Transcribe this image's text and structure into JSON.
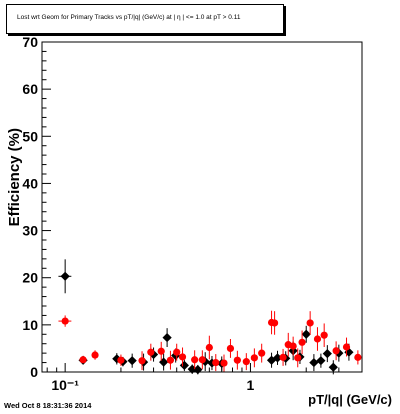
{
  "timestamp": "Wed Oct  8 18:31:36 2014",
  "chart_data": {
    "type": "scatter",
    "title": "Lost wrt Geom for Primary Tracks vs pT/|q| (GeV/c) at | η | <= 1.0 at pT > 0.11",
    "xlabel": "pT/|q| (GeV/c)",
    "ylabel": "Efficiency (%)",
    "xscale": "log",
    "xlim": [
      0.075,
      4.0
    ],
    "ylim": [
      0,
      70
    ],
    "yticks": [
      0,
      10,
      20,
      30,
      40,
      50,
      60,
      70
    ],
    "xtick_labels": [
      {
        "value": 0.1,
        "label": "10⁻¹"
      },
      {
        "value": 1,
        "label": "1"
      }
    ],
    "grid": false,
    "legend": "none",
    "series": [
      {
        "color": "#000000",
        "marker": "diamond",
        "points": [
          {
            "x": 0.1,
            "y": 20.3,
            "yerr": 3.6,
            "xerr": 0.008
          },
          {
            "x": 0.125,
            "y": 2.5,
            "yerr": 0.8
          },
          {
            "x": 0.19,
            "y": 2.8,
            "yerr": 1.2
          },
          {
            "x": 0.205,
            "y": 2.2,
            "yerr": 1.0
          },
          {
            "x": 0.23,
            "y": 2.4,
            "yerr": 1.5
          },
          {
            "x": 0.265,
            "y": 2.1,
            "yerr": 1.8
          },
          {
            "x": 0.3,
            "y": 3.7,
            "yerr": 1.5
          },
          {
            "x": 0.34,
            "y": 2.1,
            "yerr": 1.8
          },
          {
            "x": 0.355,
            "y": 7.3,
            "yerr": 2.0
          },
          {
            "x": 0.395,
            "y": 3.5,
            "yerr": 1.5
          },
          {
            "x": 0.44,
            "y": 1.4,
            "yerr": 1.2
          },
          {
            "x": 0.485,
            "y": 0.6,
            "yerr": 1.0
          },
          {
            "x": 0.52,
            "y": 0.5,
            "yerr": 1.0
          },
          {
            "x": 0.57,
            "y": 2.2,
            "yerr": 2.0
          },
          {
            "x": 0.62,
            "y": 1.9,
            "yerr": 1.5
          },
          {
            "x": 0.7,
            "y": 1.8,
            "yerr": 1.5
          },
          {
            "x": 1.3,
            "y": 2.5,
            "yerr": 1.6
          },
          {
            "x": 1.4,
            "y": 3.0,
            "yerr": 1.5
          },
          {
            "x": 1.55,
            "y": 2.9,
            "yerr": 1.5
          },
          {
            "x": 1.7,
            "y": 4.5,
            "yerr": 2.0
          },
          {
            "x": 1.85,
            "y": 3.2,
            "yerr": 1.5
          },
          {
            "x": 2.0,
            "y": 8.0,
            "yerr": 1.8
          },
          {
            "x": 2.2,
            "y": 2.0,
            "yerr": 1.8
          },
          {
            "x": 2.4,
            "y": 2.4,
            "yerr": 1.5
          },
          {
            "x": 2.6,
            "y": 3.9,
            "yerr": 1.8
          },
          {
            "x": 2.8,
            "y": 1.0,
            "yerr": 1.5
          },
          {
            "x": 3.0,
            "y": 4.0,
            "yerr": 1.8
          },
          {
            "x": 3.4,
            "y": 4.2,
            "yerr": 1.8
          }
        ]
      },
      {
        "color": "#ff0000",
        "marker": "circle",
        "points": [
          {
            "x": 0.1,
            "y": 10.8,
            "yerr": 1.2,
            "xerr": 0.008
          },
          {
            "x": 0.125,
            "y": 2.6,
            "yerr": 0.6
          },
          {
            "x": 0.145,
            "y": 3.6,
            "yerr": 1.0
          },
          {
            "x": 0.2,
            "y": 2.5,
            "yerr": 1.2
          },
          {
            "x": 0.26,
            "y": 2.4,
            "yerr": 2.0
          },
          {
            "x": 0.29,
            "y": 4.2,
            "yerr": 1.8
          },
          {
            "x": 0.33,
            "y": 4.4,
            "yerr": 2.0
          },
          {
            "x": 0.37,
            "y": 2.5,
            "yerr": 2.0
          },
          {
            "x": 0.4,
            "y": 4.2,
            "yerr": 1.8
          },
          {
            "x": 0.43,
            "y": 3.2,
            "yerr": 2.0
          },
          {
            "x": 0.5,
            "y": 2.6,
            "yerr": 2.0
          },
          {
            "x": 0.55,
            "y": 2.6,
            "yerr": 2.0
          },
          {
            "x": 0.6,
            "y": 5.2,
            "yerr": 2.5
          },
          {
            "x": 0.65,
            "y": 2.0,
            "yerr": 1.8
          },
          {
            "x": 0.72,
            "y": 1.9,
            "yerr": 1.8
          },
          {
            "x": 0.78,
            "y": 5.0,
            "yerr": 2.0
          },
          {
            "x": 0.85,
            "y": 2.5,
            "yerr": 2.0
          },
          {
            "x": 0.95,
            "y": 2.2,
            "yerr": 1.8
          },
          {
            "x": 1.05,
            "y": 3.0,
            "yerr": 2.0
          },
          {
            "x": 1.15,
            "y": 4.0,
            "yerr": 2.0
          },
          {
            "x": 1.3,
            "y": 10.5,
            "yerr": 2.5
          },
          {
            "x": 1.35,
            "y": 10.4,
            "yerr": 2.5
          },
          {
            "x": 1.5,
            "y": 3.1,
            "yerr": 1.8
          },
          {
            "x": 1.6,
            "y": 5.8,
            "yerr": 2.5
          },
          {
            "x": 1.7,
            "y": 5.5,
            "yerr": 2.0
          },
          {
            "x": 1.8,
            "y": 3.0,
            "yerr": 2.0
          },
          {
            "x": 1.9,
            "y": 6.3,
            "yerr": 2.5
          },
          {
            "x": 2.1,
            "y": 10.4,
            "yerr": 2.5
          },
          {
            "x": 2.3,
            "y": 7.0,
            "yerr": 2.5
          },
          {
            "x": 2.5,
            "y": 7.8,
            "yerr": 2.5
          },
          {
            "x": 2.9,
            "y": 4.5,
            "yerr": 2.0
          },
          {
            "x": 3.3,
            "y": 5.3,
            "yerr": 2.0
          },
          {
            "x": 3.8,
            "y": 3.1,
            "yerr": 1.5
          }
        ]
      }
    ]
  }
}
